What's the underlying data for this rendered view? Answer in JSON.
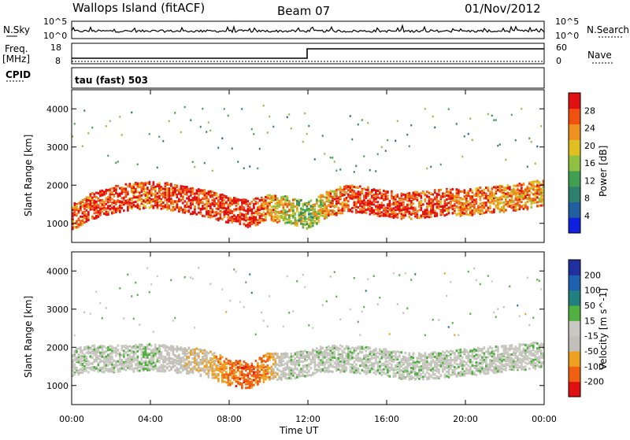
{
  "header": {
    "station": "Wallops Island (fitACF)",
    "beam": "Beam 07",
    "date": "01/Nov/2012"
  },
  "top_panels": {
    "nsky_label": "N.Sky",
    "nsky_ticks": [
      "10^5",
      "10^0"
    ],
    "nsearch_label": "N.Search",
    "nsearch_ticks": [
      "10^5",
      "10^0"
    ],
    "freq_label": "Freq.",
    "freq_unit": "[MHz]",
    "freq_ticks": [
      "18",
      "8"
    ],
    "nave_label": "Nave",
    "nave_ticks": [
      "60",
      "0"
    ],
    "cpid_label": "CPID",
    "cpid_text": "tau (fast) 503"
  },
  "x_axis": {
    "label": "Time UT",
    "ticks": [
      "00:00",
      "04:00",
      "08:00",
      "12:00",
      "16:00",
      "20:00",
      "00:00"
    ]
  },
  "colors": {
    "power_scale": [
      "#1020e0",
      "#2060a0",
      "#308070",
      "#40a050",
      "#90c040",
      "#e0c020",
      "#f09020",
      "#f05010",
      "#e01010"
    ],
    "velocity_scale": [
      "#2030a0",
      "#2060b0",
      "#208080",
      "#50b040",
      "#c8c8c0",
      "#c0c0b8",
      "#f0a020",
      "#f06010",
      "#e01010"
    ]
  },
  "chart_data": [
    {
      "type": "heatmap",
      "panel": "power",
      "ylabel": "Slant Range [km]",
      "y_ticks": [
        "1000",
        "2000",
        "3000",
        "4000"
      ],
      "ylim": [
        500,
        4500
      ],
      "xlim_hours": [
        0,
        24
      ],
      "colorbar_label": "Power [dB]",
      "colorbar_ticks": [
        "4",
        "8",
        "12",
        "16",
        "20",
        "24",
        "28"
      ],
      "colorbar_range": [
        0,
        30
      ],
      "echo_band": {
        "x_hours": [
          0,
          1,
          2,
          3,
          4,
          5,
          6,
          7,
          8,
          9,
          10,
          11,
          12,
          13,
          14,
          15,
          16,
          17,
          18,
          19,
          20,
          21,
          22,
          23,
          24
        ],
        "range_km": [
          1150,
          1450,
          1600,
          1700,
          1750,
          1700,
          1600,
          1500,
          1350,
          1250,
          1400,
          1350,
          1200,
          1500,
          1650,
          1600,
          1500,
          1450,
          1500,
          1550,
          1550,
          1600,
          1650,
          1700,
          1800
        ],
        "power_db": [
          24,
          26,
          28,
          26,
          24,
          26,
          28,
          26,
          28,
          28,
          22,
          18,
          14,
          20,
          26,
          28,
          28,
          26,
          26,
          26,
          24,
          24,
          22,
          22,
          20
        ]
      }
    },
    {
      "type": "heatmap",
      "panel": "velocity",
      "ylabel": "Slant Range [km]",
      "y_ticks": [
        "1000",
        "2000",
        "3000",
        "4000"
      ],
      "ylim": [
        500,
        4500
      ],
      "xlim_hours": [
        0,
        24
      ],
      "colorbar_label": "Velocity [m s^-1]",
      "colorbar_ticks": [
        "200",
        "100",
        "50",
        "15",
        "-15",
        "-50",
        "-100",
        "-200"
      ],
      "colorbar_range": [
        -250,
        250
      ],
      "echo_band": {
        "x_hours": [
          0,
          1,
          2,
          3,
          4,
          5,
          6,
          7,
          8,
          9,
          10,
          11,
          12,
          13,
          14,
          15,
          16,
          17,
          18,
          19,
          20,
          21,
          22,
          23,
          24
        ],
        "range_km": [
          1600,
          1700,
          1700,
          1700,
          1750,
          1700,
          1650,
          1550,
          1350,
          1250,
          1500,
          1500,
          1600,
          1700,
          1700,
          1650,
          1600,
          1500,
          1500,
          1550,
          1600,
          1650,
          1700,
          1750,
          1800
        ],
        "velocity_ms": [
          0,
          0,
          -5,
          0,
          20,
          -30,
          -60,
          -80,
          -150,
          -180,
          -120,
          0,
          0,
          0,
          0,
          5,
          0,
          0,
          0,
          0,
          0,
          0,
          0,
          0,
          0
        ]
      }
    }
  ]
}
